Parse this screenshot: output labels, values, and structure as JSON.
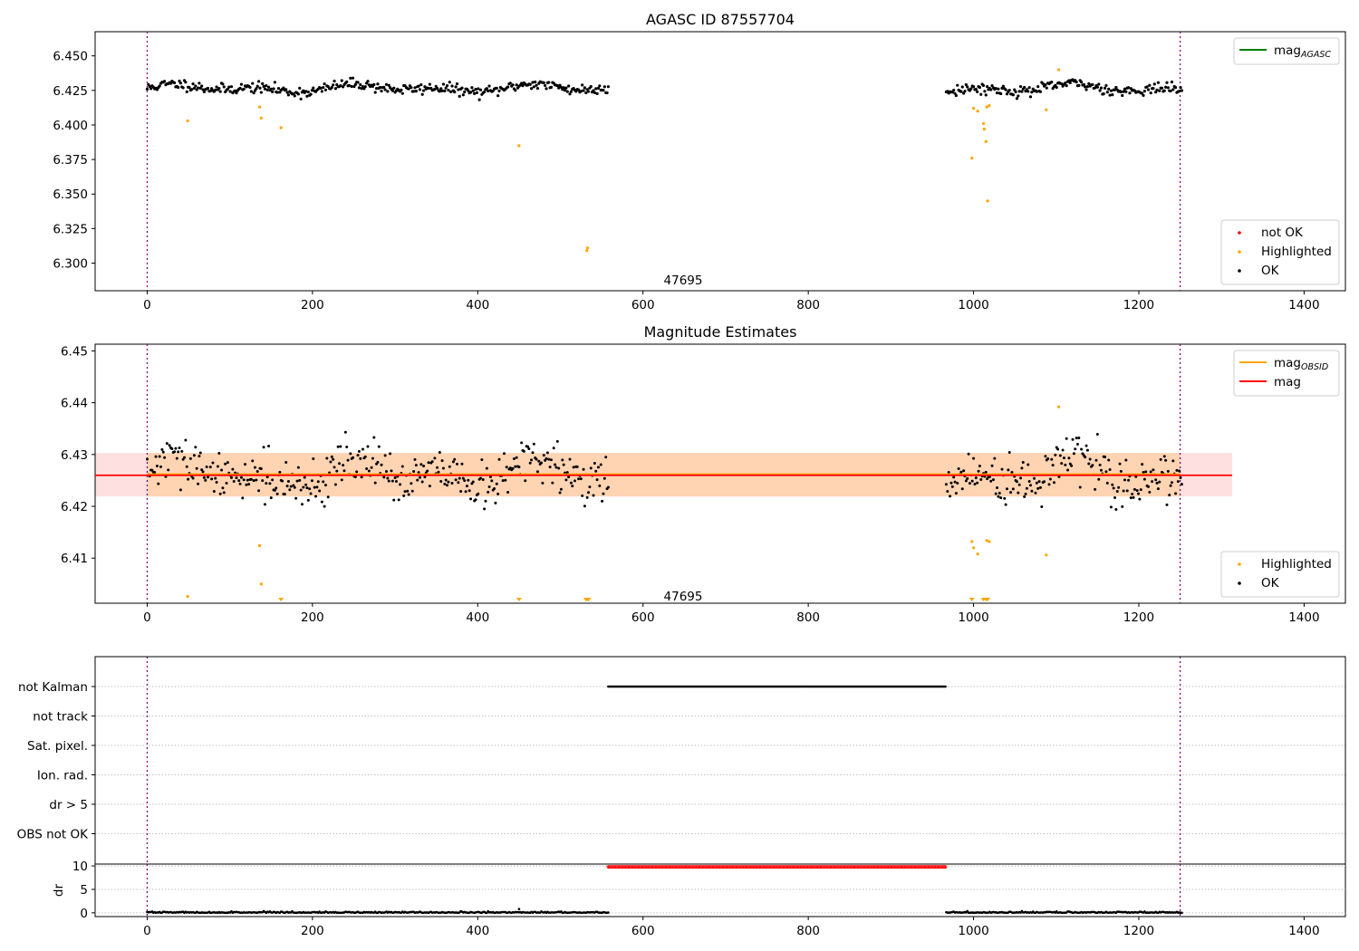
{
  "chart_data": [
    {
      "id": "agasc",
      "type": "scatter",
      "title": "AGASC ID 87557704",
      "xlim": [
        -63,
        1450
      ],
      "ylim": [
        6.28,
        6.4675
      ],
      "xticks": [
        0,
        200,
        400,
        600,
        800,
        1000,
        1200,
        1400
      ],
      "yticks": [
        6.3,
        6.325,
        6.35,
        6.375,
        6.4,
        6.425,
        6.45
      ],
      "ytick_decimals": 3,
      "obs_label": {
        "text": "47695",
        "x": 625,
        "y": 6.2845
      },
      "obs_boundaries": [
        0,
        1250
      ],
      "segments": [
        [
          0,
          558
        ],
        [
          967,
          1252
        ]
      ],
      "ok_model": {
        "center": 6.4265,
        "amplitude": 0.0035,
        "noise": 0.0035,
        "min": 6.414,
        "max": 6.436
      },
      "highlighted": [
        [
          49,
          6.403
        ],
        [
          136,
          6.413
        ],
        [
          138,
          6.405
        ],
        [
          162,
          6.398
        ],
        [
          450,
          6.385
        ],
        [
          532,
          6.309
        ],
        [
          533,
          6.311
        ],
        [
          998,
          6.376
        ],
        [
          1000,
          6.412
        ],
        [
          1005,
          6.41
        ],
        [
          1012,
          6.401
        ],
        [
          1013,
          6.397
        ],
        [
          1015,
          6.388
        ],
        [
          1016,
          6.413
        ],
        [
          1017,
          6.345
        ],
        [
          1019,
          6.414
        ],
        [
          1088,
          6.411
        ],
        [
          1103,
          6.44
        ]
      ],
      "legends": [
        {
          "position": "upper right",
          "entries": [
            {
              "kind": "line",
              "color": "#008000",
              "label": "mag",
              "sub": "AGASC"
            }
          ]
        },
        {
          "position": "lower right",
          "entries": [
            {
              "kind": "dot",
              "color": "#ff0000",
              "label": "not OK"
            },
            {
              "kind": "dot",
              "color": "#ffa500",
              "label": "Highlighted"
            },
            {
              "kind": "dot",
              "color": "#000000",
              "label": "OK"
            }
          ]
        }
      ]
    },
    {
      "id": "estimates",
      "type": "scatter",
      "title": "Magnitude Estimates",
      "xlim": [
        -63,
        1450
      ],
      "ylim": [
        6.4013,
        6.4513
      ],
      "xticks": [
        0,
        200,
        400,
        600,
        800,
        1000,
        1200,
        1400
      ],
      "yticks": [
        6.41,
        6.42,
        6.43,
        6.44,
        6.45
      ],
      "ytick_decimals": 2,
      "obs_label": {
        "text": "47695",
        "x": 625,
        "y": 6.4018
      },
      "obs_boundaries": [
        0,
        1250
      ],
      "segments": [
        [
          0,
          558
        ],
        [
          967,
          1252
        ]
      ],
      "ok_model": {
        "center": 6.426,
        "amplitude": 0.0035,
        "noise": 0.004,
        "min": 6.413,
        "max": 6.4375
      },
      "mag": {
        "value": 6.426,
        "band": [
          6.4219,
          6.4303
        ],
        "x_range": [
          -63,
          1313
        ],
        "color": "#ff0000"
      },
      "mag_obsid": {
        "value": 6.4262,
        "band": [
          6.4219,
          6.4303
        ],
        "x_range": [
          0,
          1250
        ],
        "color": "#ffa500"
      },
      "highlighted": [
        [
          49,
          6.4026
        ],
        [
          136,
          6.4124
        ],
        [
          138,
          6.405
        ],
        [
          998,
          6.4132
        ],
        [
          1000,
          6.412
        ],
        [
          1005,
          6.4108
        ],
        [
          1016,
          6.4134
        ],
        [
          1019,
          6.4132
        ],
        [
          1088,
          6.4106
        ],
        [
          1103,
          6.4392
        ]
      ],
      "clipped_low": [
        162,
        450,
        531,
        533,
        534,
        998,
        1012,
        1015,
        1017
      ],
      "legends": [
        {
          "position": "upper right",
          "entries": [
            {
              "kind": "line",
              "color": "#ffa500",
              "label": "mag",
              "sub": "OBSID"
            },
            {
              "kind": "line",
              "color": "#ff0000",
              "label": "mag"
            }
          ]
        },
        {
          "position": "lower right",
          "entries": [
            {
              "kind": "dot",
              "color": "#ffa500",
              "label": "Highlighted"
            },
            {
              "kind": "dot",
              "color": "#000000",
              "label": "OK"
            }
          ]
        }
      ]
    },
    {
      "id": "flags",
      "type": "scatter",
      "xlim": [
        -63,
        1450
      ],
      "rows": [
        "not Kalman",
        "not track",
        "Sat. pixel.",
        "Ion. rad.",
        "dr > 5",
        "OBS not OK"
      ],
      "flag_segments": [
        {
          "row": "not Kalman",
          "range": [
            558,
            967
          ],
          "color": "#000000"
        }
      ],
      "obs_boundaries": [
        0,
        1250
      ]
    },
    {
      "id": "dr",
      "type": "scatter",
      "ylabel": "dr",
      "xlim": [
        -63,
        1450
      ],
      "ylim": [
        -0.8,
        10.4
      ],
      "xticks": [
        0,
        200,
        400,
        600,
        800,
        1000,
        1200,
        1400
      ],
      "yticks": [
        0,
        5,
        10
      ],
      "obs_boundaries": [
        0,
        1250
      ],
      "segments": [
        [
          0,
          558
        ],
        [
          967,
          1252
        ]
      ],
      "saturated": {
        "range": [
          558,
          967
        ],
        "value": 9.8,
        "color": "#ff0000"
      },
      "outliers": [
        [
          450,
          0.8
        ]
      ]
    }
  ]
}
